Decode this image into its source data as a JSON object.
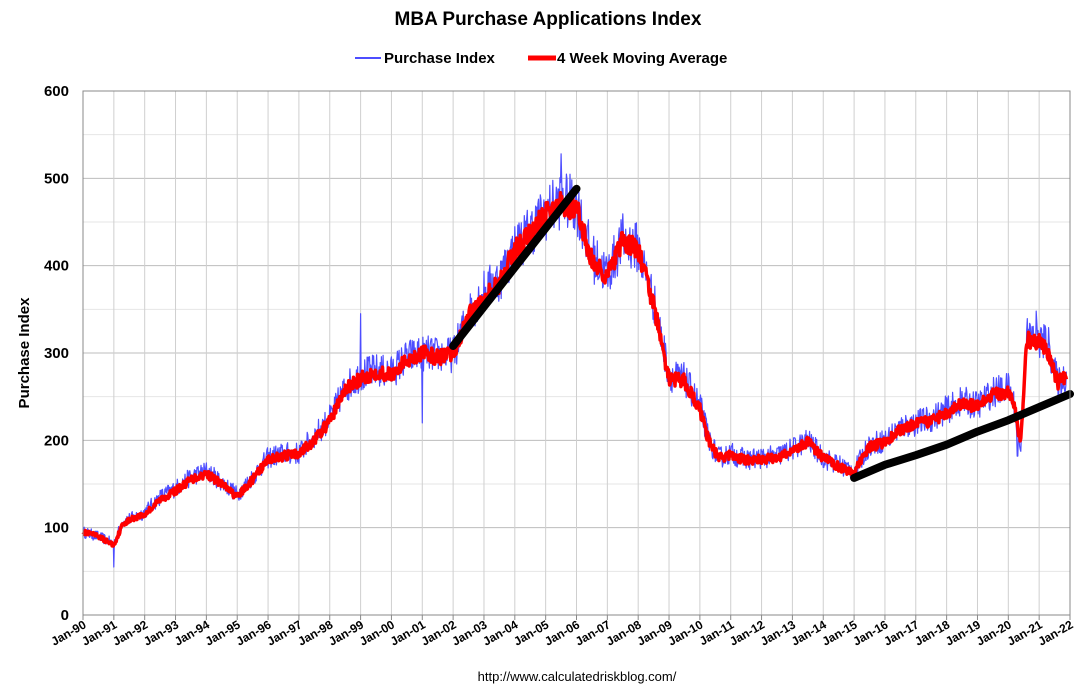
{
  "chart_data": {
    "type": "line",
    "title": "MBA Purchase Applications Index",
    "ylabel": "Purchase Index",
    "xlabel": "",
    "source": "http://www.calculatedriskblog.com/",
    "ylim": [
      0,
      600
    ],
    "yticks": [
      0,
      100,
      200,
      300,
      400,
      500,
      600
    ],
    "grid": true,
    "legend_position": "top-center",
    "x_start_year": 1990,
    "x_end_year": 2022,
    "categories": [
      "Jan-90",
      "Jan-91",
      "Jan-92",
      "Jan-93",
      "Jan-94",
      "Jan-95",
      "Jan-96",
      "Jan-97",
      "Jan-98",
      "Jan-99",
      "Jan-00",
      "Jan-01",
      "Jan-02",
      "Jan-03",
      "Jan-04",
      "Jan-05",
      "Jan-06",
      "Jan-07",
      "Jan-08",
      "Jan-09",
      "Jan-10",
      "Jan-11",
      "Jan-12",
      "Jan-13",
      "Jan-14",
      "Jan-15",
      "Jan-16",
      "Jan-17",
      "Jan-18",
      "Jan-19",
      "Jan-20",
      "Jan-21",
      "Jan-22"
    ],
    "series": [
      {
        "name": "Purchase Index",
        "color": "#4d4dff",
        "x": [
          1990.0,
          1990.5,
          1991.0,
          1991.3,
          1991.7,
          1992.0,
          1992.5,
          1993.0,
          1993.5,
          1994.0,
          1994.5,
          1995.0,
          1995.5,
          1996.0,
          1996.5,
          1997.0,
          1997.5,
          1998.0,
          1998.5,
          1999.0,
          1999.5,
          2000.0,
          2000.5,
          2001.0,
          2001.5,
          2002.0,
          2002.5,
          2003.0,
          2003.5,
          2004.0,
          2004.5,
          2005.0,
          2005.5,
          2006.0,
          2006.5,
          2007.0,
          2007.5,
          2008.0,
          2008.5,
          2009.0,
          2009.5,
          2010.0,
          2010.3,
          2010.6,
          2011.0,
          2011.5,
          2012.0,
          2012.5,
          2013.0,
          2013.5,
          2014.0,
          2014.5,
          2015.0,
          2015.5,
          2016.0,
          2016.5,
          2017.0,
          2017.5,
          2018.0,
          2018.5,
          2019.0,
          2019.5,
          2020.0,
          2020.2,
          2020.4,
          2020.6,
          2021.0,
          2021.3,
          2021.6,
          2021.9
        ],
        "y": [
          95,
          90,
          82,
          108,
          112,
          118,
          135,
          145,
          158,
          165,
          152,
          138,
          158,
          180,
          185,
          185,
          205,
          225,
          260,
          275,
          280,
          278,
          295,
          300,
          298,
          298,
          345,
          370,
          385,
          420,
          440,
          460,
          475,
          470,
          410,
          390,
          430,
          420,
          360,
          275,
          270,
          240,
          200,
          180,
          185,
          178,
          180,
          182,
          190,
          200,
          180,
          172,
          165,
          195,
          200,
          215,
          220,
          225,
          235,
          245,
          240,
          255,
          260,
          240,
          190,
          320,
          315,
          310,
          265,
          275
        ],
        "peaks": [
          [
            1991.0,
            55
          ],
          [
            1999.0,
            345
          ],
          [
            2001.0,
            220
          ],
          [
            2005.5,
            528
          ],
          [
            2020.3,
            182
          ],
          [
            2020.9,
            348
          ]
        ]
      },
      {
        "name": "4 Week Moving Average",
        "color": "#ff0000",
        "x": [
          1990.0,
          1990.5,
          1991.0,
          1991.3,
          1991.7,
          1992.0,
          1992.5,
          1993.0,
          1993.5,
          1994.0,
          1994.5,
          1995.0,
          1995.5,
          1996.0,
          1996.5,
          1997.0,
          1997.5,
          1998.0,
          1998.5,
          1999.0,
          1999.5,
          2000.0,
          2000.5,
          2001.0,
          2001.5,
          2002.0,
          2002.5,
          2003.0,
          2003.5,
          2004.0,
          2004.5,
          2005.0,
          2005.5,
          2006.0,
          2006.5,
          2007.0,
          2007.5,
          2008.0,
          2008.5,
          2009.0,
          2009.5,
          2010.0,
          2010.3,
          2010.6,
          2011.0,
          2011.5,
          2012.0,
          2012.5,
          2013.0,
          2013.5,
          2014.0,
          2014.5,
          2015.0,
          2015.5,
          2016.0,
          2016.5,
          2017.0,
          2017.5,
          2018.0,
          2018.5,
          2019.0,
          2019.5,
          2020.0,
          2020.2,
          2020.4,
          2020.6,
          2021.0,
          2021.3,
          2021.6,
          2021.9
        ],
        "y": [
          95,
          90,
          80,
          105,
          112,
          115,
          132,
          142,
          155,
          162,
          150,
          135,
          155,
          178,
          182,
          185,
          200,
          222,
          258,
          270,
          278,
          275,
          292,
          300,
          295,
          298,
          342,
          365,
          380,
          418,
          436,
          458,
          470,
          465,
          405,
          388,
          428,
          418,
          355,
          270,
          268,
          235,
          198,
          180,
          183,
          177,
          178,
          180,
          188,
          198,
          180,
          170,
          163,
          192,
          198,
          212,
          218,
          222,
          232,
          242,
          238,
          252,
          256,
          238,
          195,
          315,
          312,
          300,
          265,
          275
        ]
      }
    ],
    "trend_lines": [
      {
        "x": [
          2002.0,
          2006.0
        ],
        "y": [
          308,
          488
        ],
        "color": "#000000"
      },
      {
        "x": [
          2015.0,
          2016.0,
          2017.0,
          2018.0,
          2019.0,
          2020.0,
          2021.0,
          2022.0
        ],
        "y": [
          157,
          172,
          183,
          195,
          210,
          223,
          238,
          253
        ],
        "color": "#000000"
      }
    ]
  }
}
